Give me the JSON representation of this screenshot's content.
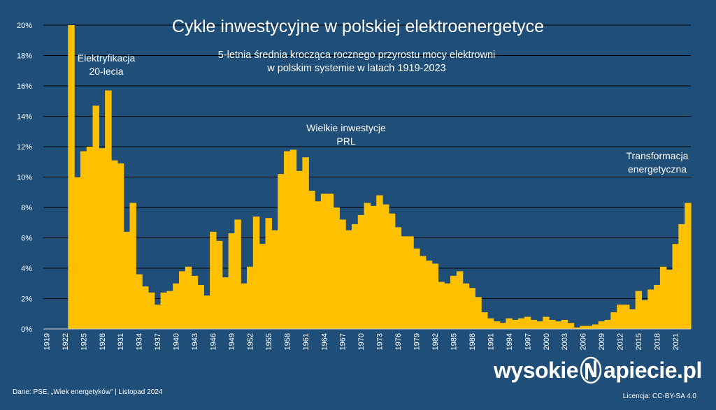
{
  "chart_data": {
    "type": "bar",
    "title": "Cykle inwestycyjne w polskiej elektroenergetyce",
    "subtitle": [
      "5-letnia średnia krocząca rocznego przyrostu mocy elektrowni",
      "w polskim systemie w latach 1919-2023"
    ],
    "x": [
      1919,
      1920,
      1921,
      1922,
      1923,
      1924,
      1925,
      1926,
      1927,
      1928,
      1929,
      1930,
      1931,
      1932,
      1933,
      1934,
      1935,
      1936,
      1937,
      1938,
      1939,
      1940,
      1941,
      1942,
      1943,
      1944,
      1945,
      1946,
      1947,
      1948,
      1949,
      1950,
      1951,
      1952,
      1953,
      1954,
      1955,
      1956,
      1957,
      1958,
      1959,
      1960,
      1961,
      1962,
      1963,
      1964,
      1965,
      1966,
      1967,
      1968,
      1969,
      1970,
      1971,
      1972,
      1973,
      1974,
      1975,
      1976,
      1977,
      1978,
      1979,
      1980,
      1981,
      1982,
      1983,
      1984,
      1985,
      1986,
      1987,
      1988,
      1989,
      1990,
      1991,
      1992,
      1993,
      1994,
      1995,
      1996,
      1997,
      1998,
      1999,
      2000,
      2001,
      2002,
      2003,
      2004,
      2005,
      2006,
      2007,
      2008,
      2009,
      2010,
      2011,
      2012,
      2013,
      2014,
      2015,
      2016,
      2017,
      2018,
      2019,
      2020,
      2021,
      2022,
      2023
    ],
    "values": [
      0,
      0,
      0,
      0,
      20.0,
      10.0,
      11.7,
      12.0,
      14.7,
      11.9,
      15.7,
      11.1,
      10.9,
      6.4,
      8.3,
      3.6,
      2.8,
      2.4,
      1.6,
      2.4,
      2.5,
      3.0,
      3.8,
      4.1,
      3.5,
      2.9,
      2.2,
      6.4,
      5.8,
      3.4,
      6.3,
      7.2,
      3.0,
      4.1,
      7.4,
      5.6,
      7.3,
      6.5,
      10.2,
      11.7,
      11.8,
      10.4,
      11.3,
      9.1,
      8.4,
      8.9,
      8.9,
      8.0,
      7.2,
      6.5,
      6.9,
      7.5,
      8.3,
      8.1,
      8.8,
      8.2,
      7.6,
      6.7,
      6.1,
      6.1,
      5.3,
      4.8,
      4.5,
      4.3,
      3.1,
      3.0,
      3.5,
      3.8,
      3.0,
      2.7,
      2.1,
      1.1,
      0.7,
      0.5,
      0.4,
      0.7,
      0.6,
      0.7,
      0.8,
      0.6,
      0.5,
      0.8,
      0.6,
      0.5,
      0.6,
      0.4,
      0.1,
      0.2,
      0.2,
      0.3,
      0.5,
      0.6,
      1.1,
      1.6,
      1.6,
      1.3,
      2.5,
      1.9,
      2.6,
      2.9,
      4.1,
      3.9,
      5.6,
      6.9,
      8.3
    ],
    "yticks": [
      "0%",
      "2%",
      "4%",
      "6%",
      "8%",
      "10%",
      "12%",
      "14%",
      "16%",
      "18%",
      "20%"
    ],
    "ylim": [
      0,
      20
    ],
    "xtick_labels": [
      "1919",
      "1922",
      "1925",
      "1928",
      "1931",
      "1934",
      "1937",
      "1940",
      "1943",
      "1946",
      "1949",
      "1952",
      "1955",
      "1958",
      "1961",
      "1964",
      "1967",
      "1970",
      "1973",
      "1976",
      "1979",
      "1982",
      "1985",
      "1988",
      "1991",
      "1994",
      "1997",
      "2000",
      "2003",
      "2006",
      "2009",
      "2012",
      "2015",
      "2018",
      "2021"
    ],
    "annotations": [
      [
        "Elektryfikacja",
        "20-lecia"
      ],
      [
        "Wielkie inwestycje",
        "PRL"
      ],
      [
        "Transformacja",
        "energetyczna"
      ]
    ],
    "bar_color": "#ffc000",
    "grid": true
  },
  "footer": {
    "source": "Dane: PSE, „Wiek energetyków” | Listopad 2024",
    "license": "Licencja: CC-BY-SA 4.0",
    "brand_left": "wysokie",
    "brand_right": "apiecie.pl"
  }
}
